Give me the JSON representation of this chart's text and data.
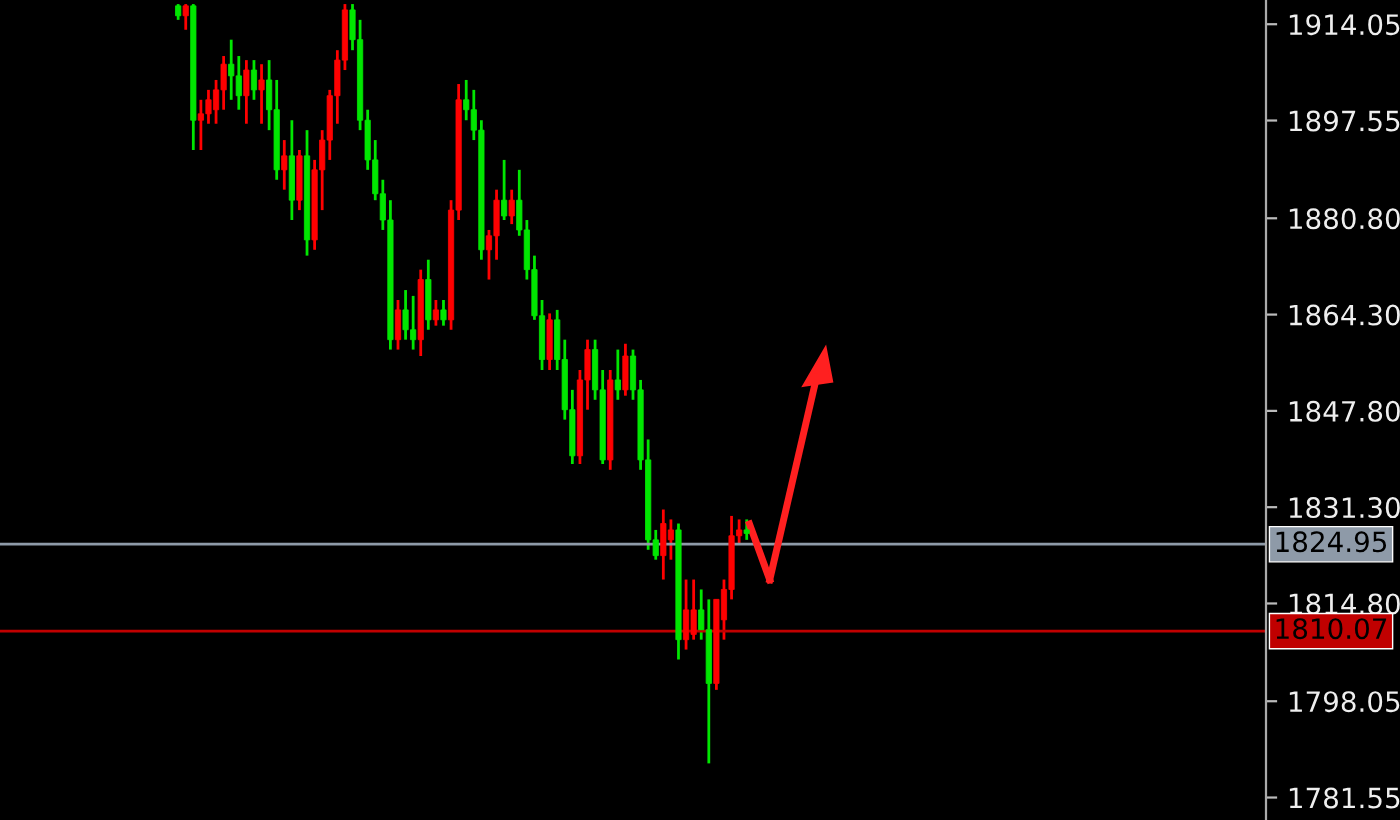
{
  "chart_data": {
    "type": "candlestick",
    "categories": [
      null,
      null,
      null,
      null,
      null,
      null,
      null,
      null,
      null,
      null,
      null,
      null,
      null,
      null,
      null,
      null,
      null,
      null,
      null,
      null,
      null,
      null,
      null,
      null,
      null,
      null,
      null,
      null,
      null,
      null,
      null,
      null,
      null,
      null,
      null,
      null,
      null,
      null,
      null,
      null,
      null,
      null,
      null,
      null,
      null,
      null,
      null,
      null,
      null,
      null,
      null,
      null,
      null,
      null,
      null,
      null,
      null,
      null,
      null,
      null,
      null,
      null,
      null,
      null,
      null,
      null,
      null,
      null,
      null,
      null,
      null,
      null,
      null,
      null,
      null,
      null,
      null,
      null,
      null,
      null,
      null,
      null,
      null,
      null,
      null,
      null,
      null,
      null,
      null,
      null,
      null,
      null,
      null,
      null,
      null,
      null,
      null,
      null,
      null,
      null,
      null,
      null,
      null,
      null,
      null,
      null,
      null,
      null,
      null,
      null,
      null,
      null,
      null,
      null,
      null,
      null,
      null,
      null,
      null,
      null,
      null,
      null,
      null,
      null,
      null,
      null,
      null,
      null,
      null,
      null,
      null,
      null,
      null,
      null,
      null,
      null,
      null,
      null,
      null,
      null,
      null,
      null,
      null,
      null,
      null,
      null,
      null,
      null,
      null,
      null,
      null,
      null,
      null,
      null,
      null,
      null,
      null,
      null,
      null,
      null,
      null,
      null,
      null,
      null,
      null,
      null,
      null
    ],
    "ohlc": [
      null,
      null,
      null,
      null,
      null,
      null,
      null,
      null,
      null,
      null,
      null,
      null,
      null,
      null,
      null,
      null,
      null,
      null,
      null,
      null,
      null,
      null,
      null,
      [
        1917.2,
        1917.5,
        1914.8,
        1915.5
      ],
      [
        1915.5,
        1917.5,
        1913.1,
        1917.2
      ],
      [
        1917.2,
        1917.5,
        1892.5,
        1897.6
      ],
      [
        1897.6,
        1901.1,
        1892.5,
        1898.7
      ],
      [
        1898.7,
        1902.8,
        1897.0,
        1901.1
      ],
      [
        1899.4,
        1904.5,
        1897.0,
        1902.8
      ],
      [
        1902.8,
        1908.6,
        1899.4,
        1907.2
      ],
      [
        1907.2,
        1911.4,
        1901.1,
        1905.2
      ],
      [
        1905.2,
        1908.6,
        1899.4,
        1901.8
      ],
      [
        1901.8,
        1907.9,
        1897.0,
        1906.2
      ],
      [
        1906.2,
        1907.9,
        1901.1,
        1902.8
      ],
      [
        1902.8,
        1907.2,
        1897.0,
        1904.5
      ],
      [
        1904.5,
        1907.9,
        1895.9,
        1899.4
      ],
      [
        1899.4,
        1904.5,
        1887.4,
        1889.1
      ],
      [
        1889.1,
        1894.2,
        1885.7,
        1891.5
      ],
      [
        1891.5,
        1897.6,
        1880.5,
        1883.9
      ],
      [
        1883.9,
        1892.5,
        1882.2,
        1891.5
      ],
      [
        1891.5,
        1895.9,
        1874.4,
        1877.1
      ],
      [
        1877.1,
        1890.8,
        1875.4,
        1889.1
      ],
      [
        1889.1,
        1895.9,
        1882.2,
        1894.2
      ],
      [
        1894.2,
        1902.8,
        1890.8,
        1901.8
      ],
      [
        1901.8,
        1909.6,
        1897.0,
        1907.9
      ],
      [
        1907.9,
        1917.5,
        1906.2,
        1916.5
      ],
      [
        1916.5,
        1917.5,
        1909.6,
        1911.4
      ],
      [
        1911.4,
        1914.8,
        1895.9,
        1897.6
      ],
      [
        1897.6,
        1899.4,
        1889.1,
        1890.8
      ],
      [
        1890.8,
        1894.2,
        1883.9,
        1885.0
      ],
      [
        1885.0,
        1887.4,
        1878.8,
        1880.5
      ],
      [
        1880.5,
        1883.9,
        1858.3,
        1860.0
      ],
      [
        1860.0,
        1866.8,
        1858.3,
        1865.1
      ],
      [
        1865.1,
        1868.5,
        1860.0,
        1861.7
      ],
      [
        1861.7,
        1867.5,
        1858.3,
        1860.0
      ],
      [
        1860.0,
        1872.0,
        1857.2,
        1870.3
      ],
      [
        1870.3,
        1873.7,
        1861.7,
        1863.4
      ],
      [
        1863.4,
        1866.8,
        1862.4,
        1865.1
      ],
      [
        1865.1,
        1866.8,
        1862.4,
        1863.4
      ],
      [
        1863.4,
        1883.9,
        1861.7,
        1882.2
      ],
      [
        1882.2,
        1903.8,
        1880.5,
        1901.1
      ],
      [
        1901.1,
        1904.5,
        1897.6,
        1899.4
      ],
      [
        1899.4,
        1902.8,
        1894.2,
        1895.9
      ],
      [
        1895.9,
        1897.6,
        1873.7,
        1875.4
      ],
      [
        1875.4,
        1878.8,
        1870.3,
        1877.8
      ],
      [
        1877.8,
        1885.7,
        1873.7,
        1883.9
      ],
      [
        1883.9,
        1890.8,
        1880.5,
        1881.2
      ],
      [
        1881.2,
        1885.7,
        1879.8,
        1883.9
      ],
      [
        1883.9,
        1889.1,
        1877.8,
        1878.8
      ],
      [
        1878.8,
        1880.5,
        1870.3,
        1872.0
      ],
      [
        1872.0,
        1874.4,
        1863.4,
        1864.1
      ],
      [
        1864.1,
        1866.8,
        1854.8,
        1856.6
      ],
      [
        1856.6,
        1864.5,
        1854.8,
        1863.4
      ],
      [
        1863.4,
        1865.1,
        1854.8,
        1856.6
      ],
      [
        1856.6,
        1860.0,
        1846.3,
        1848.0
      ],
      [
        1848.0,
        1851.4,
        1838.7,
        1840.1
      ],
      [
        1840.1,
        1854.8,
        1838.7,
        1853.1
      ],
      [
        1853.1,
        1860.0,
        1848.0,
        1858.3
      ],
      [
        1858.3,
        1860.0,
        1849.7,
        1851.4
      ],
      [
        1851.4,
        1854.8,
        1838.7,
        1839.4
      ],
      [
        1839.4,
        1854.8,
        1837.7,
        1853.1
      ],
      [
        1853.1,
        1858.3,
        1849.7,
        1851.4
      ],
      [
        1851.4,
        1859.3,
        1850.4,
        1857.2
      ],
      [
        1857.2,
        1858.3,
        1849.7,
        1851.4
      ],
      [
        1851.4,
        1853.1,
        1837.7,
        1839.4
      ],
      [
        1839.4,
        1842.9,
        1824.0,
        1825.7
      ],
      [
        1825.7,
        1827.4,
        1822.3,
        1823.0
      ],
      [
        1823.0,
        1830.9,
        1818.9,
        1828.5
      ],
      [
        1825.7,
        1829.2,
        1822.3,
        1827.4
      ],
      [
        1827.4,
        1828.5,
        1805.2,
        1808.6
      ],
      [
        1808.6,
        1818.9,
        1806.9,
        1813.7
      ],
      [
        1809.5,
        1818.9,
        1808.6,
        1813.7
      ],
      [
        1813.7,
        1817.2,
        1808.6,
        1810.3
      ],
      [
        1810.3,
        1815.5,
        1787.4,
        1801.1
      ],
      [
        1801.1,
        1815.5,
        1800.0,
        1815.5
      ],
      [
        1812.0,
        1818.9,
        1808.6,
        1817.2
      ],
      [
        1817.2,
        1829.8,
        1815.5,
        1826.4
      ],
      [
        1826.4,
        1829.2,
        1825.0,
        1827.4
      ],
      [
        1827.4,
        1829.2,
        1825.7,
        1826.8
      ],
      null,
      null,
      null,
      null,
      null,
      null,
      null,
      null,
      null,
      null,
      null,
      null,
      null,
      null,
      null,
      null,
      null,
      null,
      null,
      null,
      null,
      null,
      null,
      null,
      null,
      null,
      null,
      null,
      null,
      null,
      null,
      null,
      null,
      null,
      null,
      null,
      null,
      null,
      null,
      null,
      null,
      null,
      null,
      null,
      null,
      null,
      null,
      null,
      null,
      null,
      null,
      null,
      null,
      null,
      null,
      null,
      null,
      null,
      null,
      null,
      null,
      null,
      null,
      null,
      null,
      null,
      null,
      null
    ],
    "colors": [
      null,
      null,
      null,
      null,
      null,
      null,
      null,
      null,
      null,
      null,
      null,
      null,
      null,
      null,
      null,
      null,
      null,
      null,
      null,
      null,
      null,
      null,
      null,
      "#00e600",
      "#ff0000",
      "#00e600",
      "#ff0000",
      "#ff0000",
      "#ff0000",
      "#ff0000",
      "#00e600",
      "#00e600",
      "#ff0000",
      "#00e600",
      "#ff0000",
      "#00e600",
      "#00e600",
      "#ff0000",
      "#00e600",
      "#ff0000",
      "#00e600",
      "#ff0000",
      "#ff0000",
      "#ff0000",
      "#ff0000",
      "#ff0000",
      "#00e600",
      "#00e600",
      "#00e600",
      "#00e600",
      "#00e600",
      "#00e600",
      "#ff0000",
      "#00e600",
      "#00e600",
      "#ff0000",
      "#00e600",
      "#ff0000",
      "#00e600",
      "#ff0000",
      "#ff0000",
      "#00e600",
      "#00e600",
      "#00e600",
      "#ff0000",
      "#ff0000",
      "#00e600",
      "#ff0000",
      "#00e600",
      "#00e600",
      "#00e600",
      "#00e600",
      "#ff0000",
      "#00e600",
      "#00e600",
      "#00e600",
      "#ff0000",
      "#ff0000",
      "#00e600",
      "#00e600",
      "#ff0000",
      "#00e600",
      "#ff0000",
      "#00e600",
      "#00e600",
      "#00e600",
      "#00e600",
      "#ff0000",
      "#ff0000",
      "#00e600",
      "#ff0000",
      "#ff0000",
      "#00e600",
      "#00e600",
      "#ff0000",
      "#ff0000",
      "#ff0000",
      "#ff0000",
      "#00e600",
      null,
      null,
      null,
      null,
      null,
      null,
      null,
      null,
      null,
      null,
      null,
      null,
      null,
      null,
      null,
      null,
      null,
      null,
      null,
      null,
      null,
      null,
      null,
      null,
      null,
      null,
      null,
      null,
      null,
      null,
      null,
      null,
      null,
      null,
      null,
      null,
      null,
      null,
      null,
      null,
      null,
      null,
      null,
      null,
      null,
      null,
      null,
      null,
      null,
      null,
      null,
      null,
      null,
      null,
      null,
      null,
      null,
      null,
      null,
      null,
      null,
      null,
      null,
      null,
      null,
      null,
      null,
      null
    ],
    "ylim": [
      1777.7,
      1918.2
    ],
    "yticks": [
      1914.05,
      1897.55,
      {
        "value": 1880.8,
        "label": "1880.80"
      },
      {
        "value": 1864.3,
        "label": "1864.30"
      },
      {
        "value": 1847.8,
        "label": "1847.80"
      },
      {
        "value": 1831.3,
        "label": "1831.30"
      },
      {
        "value": 1814.8,
        "label": "1814.80"
      },
      1798.05,
      1781.55
    ],
    "ref_lines": [
      {
        "axis": "y",
        "value": 1824.95,
        "label": "1824.95",
        "color": "#8e9aa8"
      },
      {
        "axis": "y",
        "value": 1810.07,
        "label": "1810.07",
        "color": "#c00000"
      }
    ],
    "tick_labels": "y",
    "grid": false
  }
}
